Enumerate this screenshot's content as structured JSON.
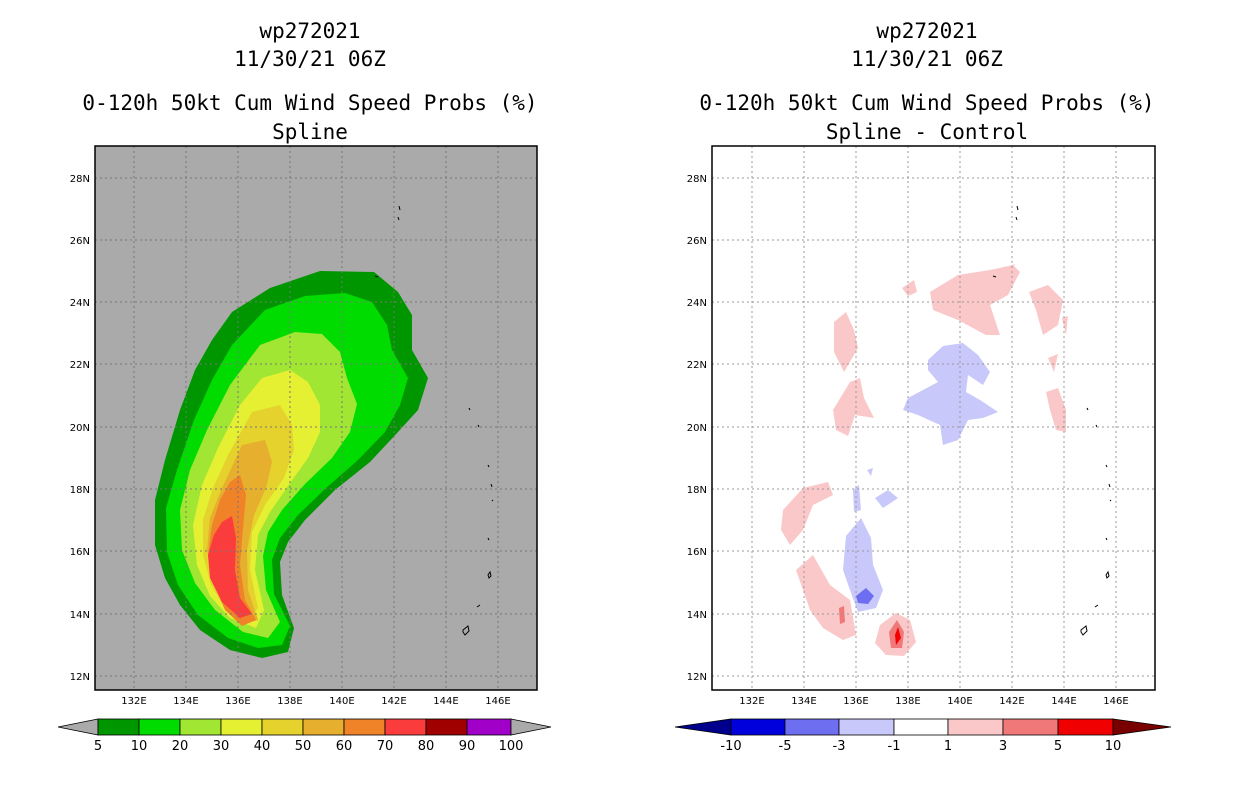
{
  "chart_data": [
    {
      "type": "filled-contour-map",
      "storm_id": "wp272021",
      "datetime": "11/30/21 06Z",
      "title": "0-120h 50kt Cum Wind Speed Probs (%)",
      "subtitle": "Spline",
      "x_ticks": [
        "132E",
        "134E",
        "136E",
        "138E",
        "140E",
        "142E",
        "144E",
        "146E"
      ],
      "y_ticks": [
        "12N",
        "14N",
        "16N",
        "18N",
        "20N",
        "22N",
        "24N",
        "26N",
        "28N"
      ],
      "xlim": [
        130.4,
        147.3
      ],
      "ylim": [
        11.5,
        29.0
      ],
      "background_color": "#aaaaaa",
      "colorbar": {
        "labels": [
          "5",
          "10",
          "20",
          "30",
          "40",
          "50",
          "60",
          "70",
          "80",
          "90",
          "100"
        ],
        "colors": [
          "#009600",
          "#00dc00",
          "#a0e632",
          "#e6f032",
          "#e6d22d",
          "#e6af2d",
          "#f08228",
          "#fa3c3c",
          "#a00000",
          "#a000c8"
        ],
        "under_color": "#aaaaaa",
        "over_color": "#aaaaaa"
      },
      "contour_levels": [
        5,
        10,
        20,
        30,
        40,
        50,
        60,
        70
      ]
    },
    {
      "type": "filled-contour-map",
      "storm_id": "wp272021",
      "datetime": "11/30/21 06Z",
      "title": "0-120h 50kt Cum Wind Speed Probs (%)",
      "subtitle": "Spline - Control",
      "x_ticks": [
        "132E",
        "134E",
        "136E",
        "138E",
        "140E",
        "142E",
        "144E",
        "146E"
      ],
      "y_ticks": [
        "12N",
        "14N",
        "16N",
        "18N",
        "20N",
        "22N",
        "24N",
        "26N",
        "28N"
      ],
      "xlim": [
        130.4,
        147.3
      ],
      "ylim": [
        11.5,
        29.0
      ],
      "background_color": "#ffffff",
      "colorbar": {
        "labels": [
          "-10",
          "-5",
          "-3",
          "-1",
          "1",
          "3",
          "5",
          "10"
        ],
        "colors": [
          "#0000dc",
          "#6e6ef0",
          "#c8c8fa",
          "#ffffff",
          "#fac8c8",
          "#f07878",
          "#f00000"
        ],
        "under_color": "#00008c",
        "over_color": "#780000"
      },
      "positive_areas": [
        "NE of 140E 24N",
        "around 134.5E 22N",
        "around 135.5E 20.5N",
        "around 133E 17N",
        "around 134.5E 14.5N",
        "137.5E 13.2N maximum"
      ],
      "negative_areas": [
        "around 140E 21N",
        "around 135.8E 15.5N"
      ]
    }
  ]
}
